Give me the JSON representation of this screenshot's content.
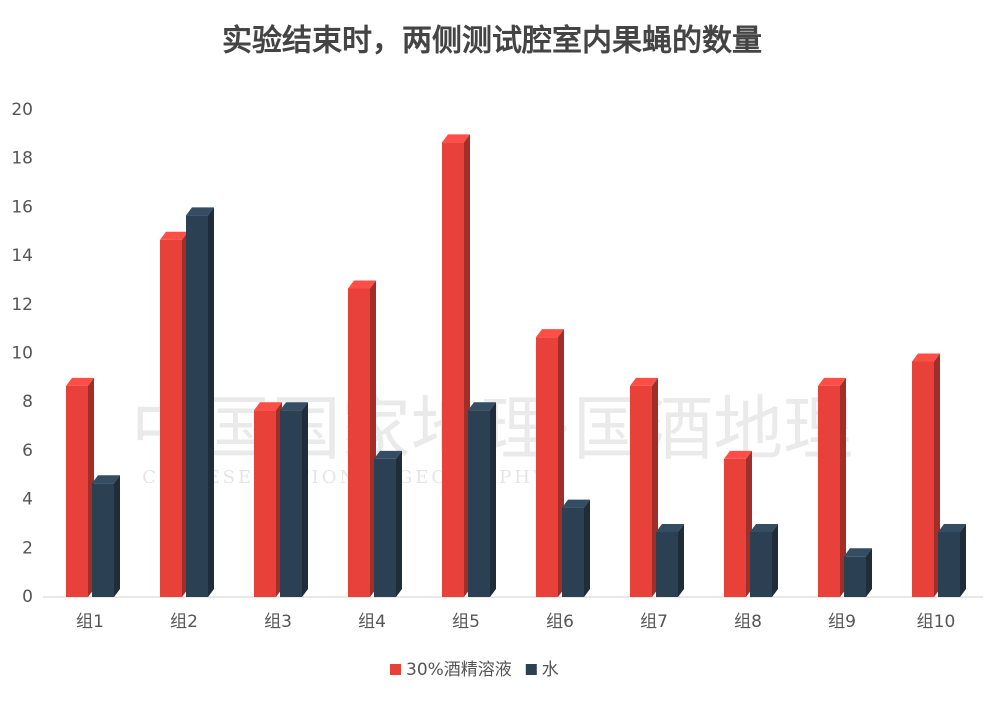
{
  "chart_data": {
    "type": "bar3d",
    "title": "实验结束时，两侧测试腔室内果蝇的数量",
    "categories": [
      "组1",
      "组2",
      "组3",
      "组4",
      "组5",
      "组6",
      "组7",
      "组8",
      "组9",
      "组10"
    ],
    "series": [
      {
        "name": "30%酒精溶液",
        "color": "#e8413a",
        "values": [
          9,
          15,
          8,
          13,
          19,
          11,
          9,
          6,
          9,
          10
        ]
      },
      {
        "name": "水",
        "color": "#2b4052",
        "values": [
          5,
          16,
          8,
          6,
          8,
          4,
          3,
          3,
          2,
          3
        ]
      }
    ],
    "ylim": [
      0,
      20
    ],
    "yticks": [
      0,
      2,
      4,
      6,
      8,
      10,
      12,
      14,
      16,
      18,
      20
    ],
    "grid": false,
    "legend": "bottom",
    "watermark": {
      "title": "中国国家地理·国酒地理",
      "subtitle": "CHINESE NATIONAL GEOGRAPHY"
    }
  }
}
